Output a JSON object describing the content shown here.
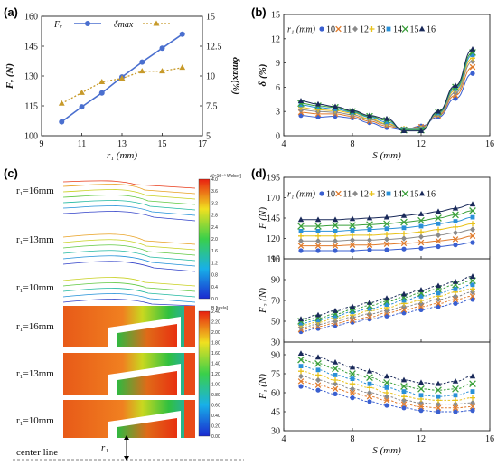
{
  "panel_labels": [
    "(a)",
    "(b)",
    "(c)",
    "(d)"
  ],
  "colors": {
    "fv": "#4a6fcf",
    "dmax": "#c79a2a",
    "series": [
      "#3a5fd0",
      "#e07a2a",
      "#8a8a8a",
      "#e8c21a",
      "#2a90d8",
      "#3aa03a",
      "#1a2a5a"
    ]
  },
  "panel_c": {
    "r1_labels": [
      "r₁=16mm",
      "r₁=13mm",
      "r₁=10mm",
      "r₁=16mm",
      "r₁=13mm",
      "r₁=10mm"
    ],
    "colorbar_a": {
      "title": "A[×10⁻³ Weber]",
      "ticks": [
        "4.0",
        "3.6",
        "3.2",
        "2.8",
        "2.4",
        "2.0",
        "1.6",
        "1.2",
        "0.8",
        "0.4",
        "0.0"
      ]
    },
    "colorbar_b": {
      "title": "B [tesla]",
      "ticks": [
        "2.40",
        "2.20",
        "2.00",
        "1.80",
        "1.60",
        "1.40",
        "1.20",
        "1.00",
        "0.80",
        "0.60",
        "0.40",
        "0.20",
        "0.00"
      ]
    },
    "center_line": "center line",
    "r1_symbol": "r₁"
  },
  "chart_data": [
    {
      "id": "a",
      "type": "line",
      "xlabel": "r₁ (mm)",
      "ylabel_left": "Fᵥ (N)",
      "ylabel_right": "δmax(%)",
      "xlim": [
        9,
        17
      ],
      "xticks": [
        9,
        11,
        13,
        15,
        17
      ],
      "ylim_left": [
        100,
        160
      ],
      "yticks_left": [
        100,
        115,
        130,
        145,
        160
      ],
      "ylim_right": [
        5,
        15
      ],
      "yticks_right": [
        5,
        7.5,
        10,
        12.5,
        15
      ],
      "x": [
        10,
        11,
        12,
        13,
        14,
        15,
        16
      ],
      "series": [
        {
          "name": "Fᵥ",
          "axis": "left",
          "values": [
            107,
            114.5,
            121.5,
            129.5,
            137,
            144,
            151
          ]
        },
        {
          "name": "δmax",
          "axis": "right",
          "values": [
            7.7,
            8.6,
            9.5,
            9.8,
            10.4,
            10.4,
            10.7
          ]
        }
      ]
    },
    {
      "id": "b",
      "type": "line",
      "xlabel": "S (mm)",
      "ylabel": "δ (%)",
      "legend_title": "r₁ (mm)",
      "xlim": [
        4,
        16
      ],
      "xticks": [
        4,
        8,
        12,
        16
      ],
      "ylim": [
        0,
        15
      ],
      "yticks": [
        0,
        3,
        6,
        9,
        12,
        15
      ],
      "x": [
        5,
        6,
        7,
        8,
        9,
        10,
        11,
        12,
        13,
        14,
        15
      ],
      "series": [
        {
          "name": "10",
          "values": [
            2.5,
            2.3,
            2.4,
            2.2,
            1.6,
            1.0,
            0.7,
            1.2,
            2.3,
            4.6,
            7.7
          ]
        },
        {
          "name": "11",
          "values": [
            2.9,
            2.7,
            2.7,
            2.4,
            1.8,
            1.2,
            0.8,
            1.1,
            2.5,
            5.0,
            8.5
          ]
        },
        {
          "name": "12",
          "values": [
            3.2,
            3.0,
            2.9,
            2.6,
            2.0,
            1.4,
            0.8,
            1.0,
            2.6,
            5.3,
            9.2
          ]
        },
        {
          "name": "13",
          "values": [
            3.5,
            3.2,
            3.1,
            2.8,
            2.1,
            1.5,
            0.9,
            0.9,
            2.7,
            5.6,
            9.6
          ]
        },
        {
          "name": "14",
          "values": [
            3.8,
            3.5,
            3.3,
            2.9,
            2.3,
            1.7,
            0.8,
            0.8,
            2.8,
            5.8,
            10.0
          ]
        },
        {
          "name": "15",
          "values": [
            4.0,
            3.7,
            3.5,
            3.0,
            2.4,
            1.9,
            0.7,
            0.7,
            2.9,
            6.0,
            10.3
          ]
        },
        {
          "name": "16",
          "values": [
            4.3,
            3.9,
            3.6,
            3.1,
            2.5,
            2.1,
            0.6,
            0.6,
            3.0,
            6.2,
            10.7
          ]
        }
      ]
    },
    {
      "id": "d1",
      "type": "line",
      "ylabel": "F (N)",
      "legend_title": "r₁ (mm)",
      "xlim": [
        4,
        16
      ],
      "ylim": [
        95,
        195
      ],
      "yticks": [
        95,
        120,
        145,
        170,
        195
      ],
      "x": [
        5,
        6,
        7,
        8,
        9,
        10,
        11,
        12,
        13,
        14,
        15
      ],
      "series": [
        {
          "name": "10",
          "values": [
            105,
            105,
            105,
            105,
            106,
            106,
            107,
            108,
            110,
            112,
            115
          ]
        },
        {
          "name": "11",
          "values": [
            111,
            111,
            111,
            112,
            112,
            113,
            114,
            115,
            117,
            119,
            123
          ]
        },
        {
          "name": "12",
          "values": [
            117,
            117,
            117,
            118,
            118,
            119,
            120,
            122,
            124,
            127,
            131
          ]
        },
        {
          "name": "13",
          "values": [
            123,
            123,
            123,
            124,
            124,
            125,
            126,
            128,
            131,
            134,
            138
          ]
        },
        {
          "name": "14",
          "values": [
            129,
            129,
            129,
            130,
            131,
            132,
            133,
            135,
            138,
            141,
            146
          ]
        },
        {
          "name": "15",
          "values": [
            135,
            135,
            136,
            136,
            137,
            138,
            140,
            142,
            145,
            149,
            154
          ]
        },
        {
          "name": "16",
          "values": [
            143,
            143,
            143,
            144,
            145,
            146,
            148,
            150,
            153,
            157,
            162
          ]
        }
      ]
    },
    {
      "id": "d2",
      "type": "line",
      "ylabel": "F₂ (N)",
      "xlim": [
        4,
        16
      ],
      "ylim": [
        30,
        110
      ],
      "yticks": [
        30,
        50,
        70,
        90,
        110
      ],
      "x": [
        5,
        6,
        7,
        8,
        9,
        10,
        11,
        12,
        13,
        14,
        15
      ],
      "series": [
        {
          "name": "10",
          "values": [
            40,
            43,
            46,
            49,
            52,
            55,
            58,
            61,
            64,
            67,
            71
          ]
        },
        {
          "name": "11",
          "values": [
            42,
            45,
            48,
            51,
            54,
            58,
            61,
            64,
            67,
            71,
            74
          ]
        },
        {
          "name": "12",
          "values": [
            44,
            47,
            50,
            54,
            57,
            60,
            64,
            67,
            71,
            74,
            78
          ]
        },
        {
          "name": "13",
          "values": [
            46,
            49,
            53,
            56,
            60,
            63,
            67,
            70,
            74,
            78,
            81
          ]
        },
        {
          "name": "14",
          "values": [
            48,
            51,
            55,
            59,
            62,
            66,
            70,
            74,
            77,
            81,
            85
          ]
        },
        {
          "name": "15",
          "values": [
            50,
            53,
            57,
            61,
            65,
            69,
            73,
            77,
            81,
            85,
            89
          ]
        },
        {
          "name": "16",
          "values": [
            52,
            56,
            60,
            64,
            68,
            72,
            76,
            80,
            84,
            88,
            93
          ]
        }
      ]
    },
    {
      "id": "d3",
      "type": "line",
      "xlabel": "S (mm)",
      "ylabel": "F₁ (N)",
      "xlim": [
        4,
        16
      ],
      "xticks": [
        4,
        8,
        12,
        16
      ],
      "ylim": [
        30,
        100
      ],
      "yticks": [
        30,
        45,
        60,
        75,
        90
      ],
      "x": [
        5,
        6,
        7,
        8,
        9,
        10,
        11,
        12,
        13,
        14,
        15
      ],
      "series": [
        {
          "name": "10",
          "values": [
            65,
            62,
            59,
            56,
            53,
            50,
            48,
            46,
            45,
            45,
            46
          ]
        },
        {
          "name": "11",
          "values": [
            69,
            66,
            63,
            60,
            57,
            54,
            51,
            49,
            48,
            48,
            49
          ]
        },
        {
          "name": "12",
          "values": [
            73,
            70,
            67,
            63,
            60,
            57,
            54,
            52,
            51,
            51,
            52
          ]
        },
        {
          "name": "13",
          "values": [
            77,
            74,
            70,
            67,
            64,
            60,
            57,
            55,
            54,
            54,
            56
          ]
        },
        {
          "name": "14",
          "values": [
            81,
            78,
            74,
            71,
            67,
            64,
            61,
            58,
            57,
            58,
            61
          ]
        },
        {
          "name": "15",
          "values": [
            86,
            83,
            79,
            75,
            72,
            68,
            65,
            63,
            62,
            63,
            67
          ]
        },
        {
          "name": "16",
          "values": [
            91,
            88,
            84,
            80,
            77,
            73,
            70,
            68,
            67,
            69,
            73
          ]
        }
      ]
    }
  ]
}
